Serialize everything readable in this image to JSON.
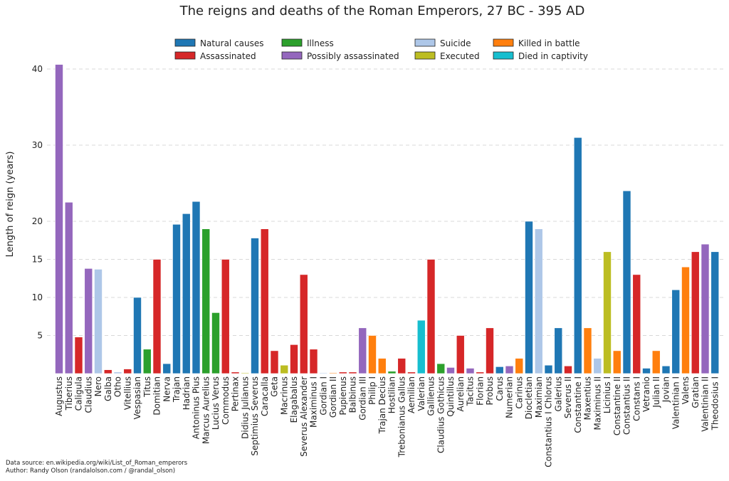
{
  "chart_data": {
    "type": "bar",
    "title": "The reigns and deaths of the Roman Emperors, 27 BC - 395 AD",
    "xlabel": "",
    "ylabel": "Length of reign (years)",
    "ylim": [
      0,
      41
    ],
    "yticks": [
      5,
      10,
      15,
      20,
      30,
      40
    ],
    "grid": "horizontal dashed",
    "legend_placement": "top",
    "legend": [
      {
        "key": "N",
        "label": "Natural causes",
        "color": "#1f77b4"
      },
      {
        "key": "A",
        "label": "Assassinated",
        "color": "#d62728"
      },
      {
        "key": "I",
        "label": "Illness",
        "color": "#2ca02c"
      },
      {
        "key": "P",
        "label": "Possibly assassinated",
        "color": "#9467bd"
      },
      {
        "key": "S",
        "label": "Suicide",
        "color": "#aec7e8"
      },
      {
        "key": "E",
        "label": "Executed",
        "color": "#bcbd22"
      },
      {
        "key": "B",
        "label": "Killed in battle",
        "color": "#ff7f0e"
      },
      {
        "key": "C",
        "label": "Died in captivity",
        "color": "#17becf"
      }
    ],
    "emperors": [
      {
        "name": "Augustus",
        "reign": 40.6,
        "death": "P"
      },
      {
        "name": "Tiberius",
        "reign": 22.5,
        "death": "P"
      },
      {
        "name": "Caligula",
        "reign": 4.8,
        "death": "A"
      },
      {
        "name": "Claudius",
        "reign": 13.8,
        "death": "P"
      },
      {
        "name": "Nero",
        "reign": 13.7,
        "death": "S"
      },
      {
        "name": "Galba",
        "reign": 0.5,
        "death": "A"
      },
      {
        "name": "Otho",
        "reign": 0.2,
        "death": "S"
      },
      {
        "name": "Vitellius",
        "reign": 0.6,
        "death": "A"
      },
      {
        "name": "Vespasian",
        "reign": 10.0,
        "death": "N"
      },
      {
        "name": "Titus",
        "reign": 3.2,
        "death": "I"
      },
      {
        "name": "Domitian",
        "reign": 15.0,
        "death": "A"
      },
      {
        "name": "Nerva",
        "reign": 1.3,
        "death": "N"
      },
      {
        "name": "Trajan",
        "reign": 19.6,
        "death": "N"
      },
      {
        "name": "Hadrian",
        "reign": 21.0,
        "death": "N"
      },
      {
        "name": "Antoninus Pius",
        "reign": 22.6,
        "death": "N"
      },
      {
        "name": "Marcus Aurelius",
        "reign": 19.0,
        "death": "I"
      },
      {
        "name": "Lucius Verus",
        "reign": 8.0,
        "death": "I"
      },
      {
        "name": "Commodus",
        "reign": 15.0,
        "death": "A"
      },
      {
        "name": "Pertinax",
        "reign": 0.2,
        "death": "A"
      },
      {
        "name": "Didius Julianus",
        "reign": 0.1,
        "death": "E"
      },
      {
        "name": "Septimius Severus",
        "reign": 17.8,
        "death": "N"
      },
      {
        "name": "Caracalla",
        "reign": 19.0,
        "death": "A"
      },
      {
        "name": "Geta",
        "reign": 3.0,
        "death": "A"
      },
      {
        "name": "Macrinus",
        "reign": 1.1,
        "death": "E"
      },
      {
        "name": "Elagabalus",
        "reign": 3.8,
        "death": "A"
      },
      {
        "name": "Severus Alexander",
        "reign": 13.0,
        "death": "A"
      },
      {
        "name": "Maximinus I",
        "reign": 3.2,
        "death": "A"
      },
      {
        "name": "Gordian I",
        "reign": 0.1,
        "death": "S"
      },
      {
        "name": "Gordian II",
        "reign": 0.1,
        "death": "B"
      },
      {
        "name": "Pupienus",
        "reign": 0.2,
        "death": "A"
      },
      {
        "name": "Balbinus",
        "reign": 0.2,
        "death": "A"
      },
      {
        "name": "Gordian III",
        "reign": 6.0,
        "death": "P"
      },
      {
        "name": "Philip I",
        "reign": 5.0,
        "death": "B"
      },
      {
        "name": "Trajan Decius",
        "reign": 2.0,
        "death": "B"
      },
      {
        "name": "Hostilian",
        "reign": 0.3,
        "death": "I"
      },
      {
        "name": "Trebonianus Gallus",
        "reign": 2.0,
        "death": "A"
      },
      {
        "name": "Aemilian",
        "reign": 0.2,
        "death": "A"
      },
      {
        "name": "Valerian",
        "reign": 7.0,
        "death": "C"
      },
      {
        "name": "Gallienus",
        "reign": 15.0,
        "death": "A"
      },
      {
        "name": "Claudius Gothicus",
        "reign": 1.3,
        "death": "I"
      },
      {
        "name": "Quintillus",
        "reign": 0.8,
        "death": "P"
      },
      {
        "name": "Aurelian",
        "reign": 5.0,
        "death": "A"
      },
      {
        "name": "Tacitus",
        "reign": 0.7,
        "death": "P"
      },
      {
        "name": "Florian",
        "reign": 0.2,
        "death": "A"
      },
      {
        "name": "Probus",
        "reign": 6.0,
        "death": "A"
      },
      {
        "name": "Carus",
        "reign": 0.9,
        "death": "N"
      },
      {
        "name": "Numerian",
        "reign": 1.0,
        "death": "P"
      },
      {
        "name": "Carinus",
        "reign": 2.0,
        "death": "B"
      },
      {
        "name": "Diocletian",
        "reign": 20.0,
        "death": "N"
      },
      {
        "name": "Maximian",
        "reign": 19.0,
        "death": "S"
      },
      {
        "name": "Constantius I Chlorus",
        "reign": 1.1,
        "death": "N"
      },
      {
        "name": "Galerius",
        "reign": 6.0,
        "death": "N"
      },
      {
        "name": "Severus II",
        "reign": 1.0,
        "death": "A"
      },
      {
        "name": "Constantine I",
        "reign": 31.0,
        "death": "N"
      },
      {
        "name": "Maxentius",
        "reign": 6.0,
        "death": "B"
      },
      {
        "name": "Maximinus II",
        "reign": 2.0,
        "death": "S"
      },
      {
        "name": "Licinius I",
        "reign": 16.0,
        "death": "E"
      },
      {
        "name": "Constantine II",
        "reign": 3.0,
        "death": "B"
      },
      {
        "name": "Constantius II",
        "reign": 24.0,
        "death": "N"
      },
      {
        "name": "Constans I",
        "reign": 13.0,
        "death": "A"
      },
      {
        "name": "Vetranio",
        "reign": 0.7,
        "death": "N"
      },
      {
        "name": "Julian II",
        "reign": 3.0,
        "death": "B"
      },
      {
        "name": "Jovian",
        "reign": 1.0,
        "death": "N"
      },
      {
        "name": "Valentinian I",
        "reign": 11.0,
        "death": "N"
      },
      {
        "name": "Valens",
        "reign": 14.0,
        "death": "B"
      },
      {
        "name": "Gratian",
        "reign": 16.0,
        "death": "A"
      },
      {
        "name": "Valentinian II",
        "reign": 17.0,
        "death": "P"
      },
      {
        "name": "Theodosius I",
        "reign": 16.0,
        "death": "N"
      }
    ]
  },
  "footer": {
    "source": "Data source: en.wikipedia.org/wiki/List_of_Roman_emperors",
    "author": "Author: Randy Olson (randalolson.com / @randal_olson)"
  }
}
